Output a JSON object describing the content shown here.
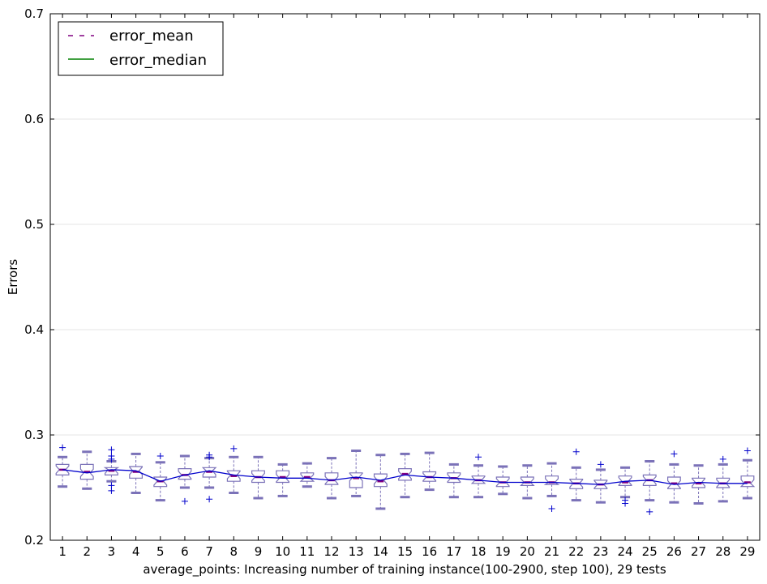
{
  "chart_data": {
    "type": "box",
    "title": "",
    "xlabel": "average_points: Increasing number of training instance(100-2900, step 100), 29 tests",
    "ylabel": "Errors",
    "ylim": [
      0.2,
      0.7
    ],
    "yticks": [
      "0.2",
      "0.3",
      "0.4",
      "0.5",
      "0.6",
      "0.7"
    ],
    "categories": [
      "1",
      "2",
      "3",
      "4",
      "5",
      "6",
      "7",
      "8",
      "9",
      "10",
      "11",
      "12",
      "13",
      "14",
      "15",
      "16",
      "17",
      "18",
      "19",
      "20",
      "21",
      "22",
      "23",
      "24",
      "25",
      "26",
      "27",
      "28",
      "29"
    ],
    "legend": {
      "position": "top-left",
      "entries": [
        {
          "label": "error_mean",
          "style": "dashed",
          "color": "#800080"
        },
        {
          "label": "error_median",
          "style": "solid",
          "color": "#008000"
        }
      ]
    },
    "grid": "horizontal",
    "colors": {
      "box": "#7b72b8",
      "whisker": "#7b72b8",
      "median_line": "#0000cc",
      "mean_marker": "#800080",
      "outlier": "#0000cc"
    },
    "boxes": [
      {
        "q1": 0.262,
        "median": 0.267,
        "q3": 0.272,
        "whislo": 0.251,
        "whishi": 0.279,
        "mean": 0.267,
        "fliers": [
          0.288
        ]
      },
      {
        "q1": 0.258,
        "median": 0.264,
        "q3": 0.272,
        "whislo": 0.249,
        "whishi": 0.284,
        "mean": 0.265,
        "fliers": []
      },
      {
        "q1": 0.262,
        "median": 0.267,
        "q3": 0.269,
        "whislo": 0.256,
        "whishi": 0.275,
        "mean": 0.266,
        "fliers": [
          0.286,
          0.28,
          0.277,
          0.252,
          0.247
        ]
      },
      {
        "q1": 0.259,
        "median": 0.266,
        "q3": 0.27,
        "whislo": 0.245,
        "whishi": 0.282,
        "mean": 0.265,
        "fliers": []
      },
      {
        "q1": 0.251,
        "median": 0.256,
        "q3": 0.26,
        "whislo": 0.238,
        "whishi": 0.274,
        "mean": 0.256,
        "fliers": [
          0.28
        ]
      },
      {
        "q1": 0.258,
        "median": 0.262,
        "q3": 0.268,
        "whislo": 0.25,
        "whishi": 0.28,
        "mean": 0.262,
        "fliers": [
          0.237
        ]
      },
      {
        "q1": 0.26,
        "median": 0.266,
        "q3": 0.269,
        "whislo": 0.25,
        "whishi": 0.278,
        "mean": 0.265,
        "fliers": [
          0.281,
          0.279,
          0.239
        ]
      },
      {
        "q1": 0.256,
        "median": 0.262,
        "q3": 0.266,
        "whislo": 0.245,
        "whishi": 0.279,
        "mean": 0.261,
        "fliers": [
          0.287
        ]
      },
      {
        "q1": 0.255,
        "median": 0.26,
        "q3": 0.266,
        "whislo": 0.24,
        "whishi": 0.279,
        "mean": 0.26,
        "fliers": []
      },
      {
        "q1": 0.255,
        "median": 0.259,
        "q3": 0.266,
        "whislo": 0.242,
        "whishi": 0.272,
        "mean": 0.26,
        "fliers": []
      },
      {
        "q1": 0.256,
        "median": 0.259,
        "q3": 0.264,
        "whislo": 0.251,
        "whishi": 0.273,
        "mean": 0.26,
        "fliers": []
      },
      {
        "q1": 0.253,
        "median": 0.257,
        "q3": 0.264,
        "whislo": 0.24,
        "whishi": 0.278,
        "mean": 0.257,
        "fliers": []
      },
      {
        "q1": 0.25,
        "median": 0.26,
        "q3": 0.264,
        "whislo": 0.242,
        "whishi": 0.285,
        "mean": 0.259,
        "fliers": []
      },
      {
        "q1": 0.251,
        "median": 0.257,
        "q3": 0.263,
        "whislo": 0.23,
        "whishi": 0.281,
        "mean": 0.256,
        "fliers": []
      },
      {
        "q1": 0.257,
        "median": 0.262,
        "q3": 0.268,
        "whislo": 0.241,
        "whishi": 0.282,
        "mean": 0.263,
        "fliers": []
      },
      {
        "q1": 0.256,
        "median": 0.26,
        "q3": 0.265,
        "whislo": 0.248,
        "whishi": 0.283,
        "mean": 0.26,
        "fliers": []
      },
      {
        "q1": 0.255,
        "median": 0.259,
        "q3": 0.264,
        "whislo": 0.241,
        "whishi": 0.272,
        "mean": 0.259,
        "fliers": []
      },
      {
        "q1": 0.254,
        "median": 0.257,
        "q3": 0.261,
        "whislo": 0.241,
        "whishi": 0.271,
        "mean": 0.257,
        "fliers": [
          0.279
        ]
      },
      {
        "q1": 0.251,
        "median": 0.255,
        "q3": 0.26,
        "whislo": 0.244,
        "whishi": 0.27,
        "mean": 0.255,
        "fliers": []
      },
      {
        "q1": 0.252,
        "median": 0.255,
        "q3": 0.26,
        "whislo": 0.24,
        "whishi": 0.271,
        "mean": 0.255,
        "fliers": []
      },
      {
        "q1": 0.253,
        "median": 0.255,
        "q3": 0.261,
        "whislo": 0.242,
        "whishi": 0.273,
        "mean": 0.255,
        "fliers": [
          0.23
        ]
      },
      {
        "q1": 0.249,
        "median": 0.254,
        "q3": 0.258,
        "whislo": 0.238,
        "whishi": 0.269,
        "mean": 0.254,
        "fliers": [
          0.284
        ]
      },
      {
        "q1": 0.249,
        "median": 0.253,
        "q3": 0.257,
        "whislo": 0.236,
        "whishi": 0.267,
        "mean": 0.253,
        "fliers": [
          0.272
        ]
      },
      {
        "q1": 0.252,
        "median": 0.256,
        "q3": 0.261,
        "whislo": 0.241,
        "whishi": 0.269,
        "mean": 0.255,
        "fliers": [
          0.235,
          0.238
        ]
      },
      {
        "q1": 0.252,
        "median": 0.257,
        "q3": 0.262,
        "whislo": 0.238,
        "whishi": 0.275,
        "mean": 0.257,
        "fliers": [
          0.227
        ]
      },
      {
        "q1": 0.249,
        "median": 0.253,
        "q3": 0.26,
        "whislo": 0.236,
        "whishi": 0.272,
        "mean": 0.254,
        "fliers": [
          0.282
        ]
      },
      {
        "q1": 0.25,
        "median": 0.255,
        "q3": 0.259,
        "whislo": 0.235,
        "whishi": 0.271,
        "mean": 0.254,
        "fliers": []
      },
      {
        "q1": 0.25,
        "median": 0.254,
        "q3": 0.259,
        "whislo": 0.237,
        "whishi": 0.272,
        "mean": 0.254,
        "fliers": [
          0.277
        ]
      },
      {
        "q1": 0.251,
        "median": 0.254,
        "q3": 0.261,
        "whislo": 0.24,
        "whishi": 0.276,
        "mean": 0.255,
        "fliers": [
          0.285
        ]
      }
    ]
  }
}
